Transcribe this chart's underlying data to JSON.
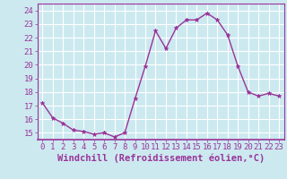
{
  "x": [
    0,
    1,
    2,
    3,
    4,
    5,
    6,
    7,
    8,
    9,
    10,
    11,
    12,
    13,
    14,
    15,
    16,
    17,
    18,
    19,
    20,
    21,
    22,
    23
  ],
  "y": [
    17.2,
    16.1,
    15.7,
    15.2,
    15.1,
    14.9,
    15.0,
    14.7,
    15.0,
    17.5,
    19.9,
    22.5,
    21.2,
    22.7,
    23.3,
    23.3,
    23.8,
    23.3,
    22.2,
    19.9,
    18.0,
    17.7,
    17.9,
    17.7
  ],
  "line_color": "#993399",
  "marker": "*",
  "marker_size": 3.5,
  "background_color": "#cce9f0",
  "grid_color": "#ffffff",
  "xlabel": "Windchill (Refroidissement éolien,°C)",
  "xlabel_fontsize": 7.5,
  "ylim": [
    14.5,
    24.5
  ],
  "yticks": [
    15,
    16,
    17,
    18,
    19,
    20,
    21,
    22,
    23,
    24
  ],
  "xticks": [
    0,
    1,
    2,
    3,
    4,
    5,
    6,
    7,
    8,
    9,
    10,
    11,
    12,
    13,
    14,
    15,
    16,
    17,
    18,
    19,
    20,
    21,
    22,
    23
  ],
  "tick_fontsize": 6.5,
  "tick_color": "#993399",
  "line_width": 1.0,
  "spine_color": "#993399"
}
